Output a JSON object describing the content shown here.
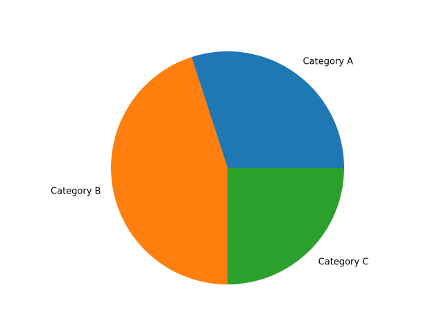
{
  "chart_data": {
    "type": "pie",
    "categories": [
      "Category A",
      "Category B",
      "Category C"
    ],
    "values": [
      30,
      45,
      25
    ],
    "colors": [
      "#1f77b4",
      "#ff7f0e",
      "#2ca02c"
    ],
    "start_angle_deg": 0,
    "direction": "counterclockwise",
    "legend": "none"
  }
}
